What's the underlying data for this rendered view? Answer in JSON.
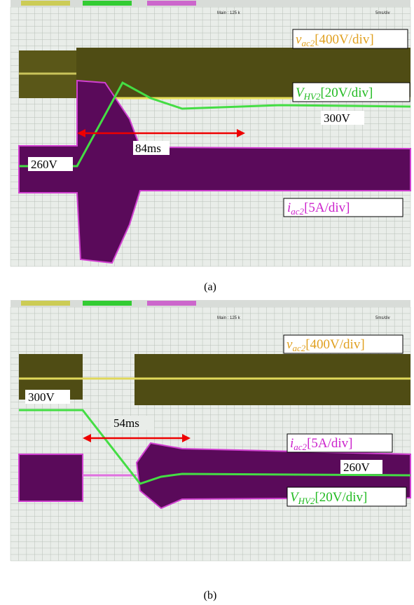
{
  "panels": [
    {
      "header": {
        "main": "Main : 125 k",
        "timebase": "5ms/div"
      },
      "labels": {
        "vac": {
          "symbol": "v",
          "sub": "ac2",
          "scale": "[400V/div]"
        },
        "vhv": {
          "symbol": "V",
          "sub": "HV2",
          "scale": "[20V/div]"
        },
        "iac": {
          "symbol": "i",
          "sub": "ac2",
          "scale": "[5A/div]"
        }
      },
      "annotations": {
        "high": "300V",
        "low": "260V",
        "duration": "84ms"
      },
      "caption": "(a)"
    },
    {
      "header": {
        "main": "Main : 125 k",
        "timebase": "5ms/div"
      },
      "labels": {
        "vac": {
          "symbol": "v",
          "sub": "ac2",
          "scale": "[400V/div]"
        },
        "vhv": {
          "symbol": "V",
          "sub": "HV2",
          "scale": "[20V/div]"
        },
        "iac": {
          "symbol": "i",
          "sub": "ac2",
          "scale": "[5A/div]"
        }
      },
      "annotations": {
        "high": "300V",
        "low": "260V",
        "duration": "54ms"
      },
      "caption": "(b)"
    }
  ]
}
